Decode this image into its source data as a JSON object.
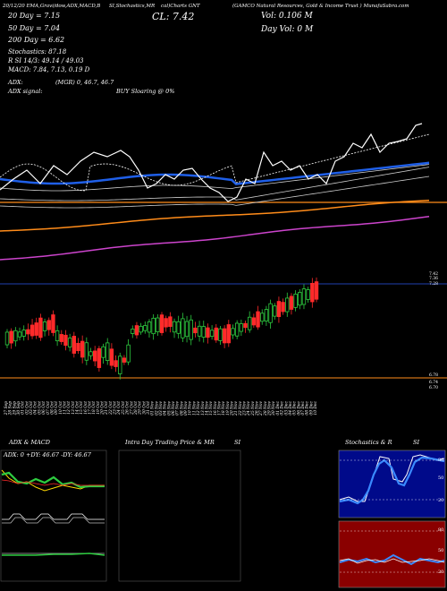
{
  "header": {
    "row1_left": "20/12/20  EMA,Gravi/dow,ADX,MACD,B",
    "row1_mid": "SI,Stochastics,MR",
    "row1_mid2": "cal)Charts GNT",
    "row1_right": "(GAMCO Natural Resources, Gold & Income Trust ) MunafaSabra.com",
    "ema20": "20   Day = 7.15",
    "ema50": "50   Day = 7.04",
    "ema200": "200  Day = 6.62",
    "cl": "CL: 7.42",
    "vol": "Vol: 0.106  M",
    "dayvol": "Day Vol:  0   M",
    "stoch": "Stochastics: 87.18",
    "rsi": "R      SI 14/3: 49.14 / 49.03",
    "macd": "MACD: 7.84, 7.13, 0.19 D",
    "adx": "ADX:",
    "adx_mid": "(MGR) 0, 46.7, 46.7",
    "adx_signal": "ADX  signal:",
    "adx_signal_mid": "BUY Sloaring @ 0%"
  },
  "price_labels": [
    "7.42",
    "7.36",
    "7.28",
    "6.78",
    "6.74",
    "6.70"
  ],
  "chart_data": {
    "type": "candlestick",
    "x": [
      "27 Sep",
      "28 Sep",
      "29 Sep",
      "30 Sep",
      "01 Oct",
      "02 Oct",
      "03 Oct",
      "04 Oct",
      "05 Oct",
      "06 Oct",
      "07 Oct",
      "08 Oct",
      "09 Oct",
      "10 Oct",
      "11 Oct",
      "12 Oct",
      "13 Oct",
      "14 Oct",
      "15 Oct",
      "16 Oct",
      "17 Oct",
      "18 Oct",
      "19 Oct",
      "20 Oct",
      "21 Oct",
      "22 Oct",
      "23 Oct",
      "24 Oct",
      "25 Oct",
      "26 Oct",
      "27 Oct",
      "28 Oct",
      "29 Oct",
      "30 Oct",
      "31 Oct",
      "01 Nov",
      "02 Nov",
      "03 Nov",
      "04 Nov",
      "05 Nov",
      "06 Nov",
      "07 Nov",
      "08 Nov",
      "09 Nov",
      "10 Nov",
      "11 Nov",
      "12 Nov",
      "13 Nov",
      "14 Nov",
      "15 Nov",
      "16 Nov",
      "17 Nov",
      "18 Nov",
      "19 Nov",
      "20 Nov",
      "21 Nov",
      "22 Nov",
      "23 Nov",
      "24 Nov",
      "25 Nov",
      "26 Nov",
      "27 Nov",
      "28 Nov",
      "29 Nov",
      "30 Nov",
      "01 Dec",
      "02 Dec",
      "03 Dec",
      "04 Dec",
      "05 Dec",
      "06 Dec",
      "07 Dec",
      "08 Dec",
      "09 Dec",
      "10 Dec"
    ],
    "panels": [
      "ADX & MACD",
      "Intra Day Trading Price & MR",
      "SI",
      "Stochastics & R",
      "SI"
    ],
    "adx_title": "ADX: 0  +DY: 46.67  -DY: 46.67",
    "stoch_ticks": [
      "80",
      "50",
      "20"
    ],
    "rsi_ticks": [
      "80",
      "50",
      "20"
    ],
    "colors": {
      "up": "#2ecc40",
      "down": "#ff2a2a",
      "ema20": "#ffffff",
      "ema50": "#1f5fe8",
      "ema200": "#ff8c1a",
      "purple": "#cc44cc"
    }
  }
}
